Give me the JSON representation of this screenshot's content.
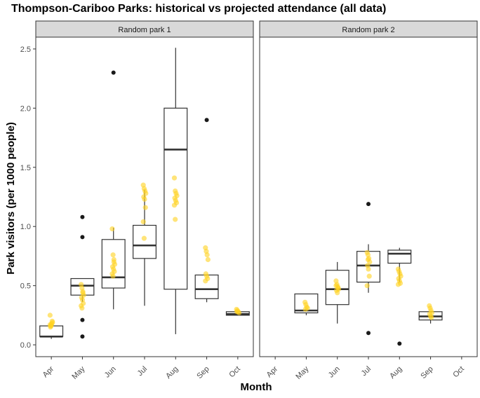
{
  "chart_data": {
    "type": "boxplot",
    "title": "Thompson-Cariboo Parks: historical vs projected attendance (all data)",
    "xlabel": "Month",
    "ylabel": "Park visitors (per 1000 people)",
    "categories": [
      "Apr",
      "May",
      "Jun",
      "Jul",
      "Aug",
      "Sep",
      "Oct"
    ],
    "yticks": [
      0.0,
      0.5,
      1.0,
      1.5,
      2.0,
      2.5
    ],
    "ylim": [
      -0.1,
      2.6
    ],
    "grid": false,
    "colors": {
      "projected_points": "#FFD21F",
      "box_line": "#333333",
      "outlier": "#1a1a1a",
      "strip_fill": "#D9D9D9"
    },
    "panels": [
      {
        "name": "Random park 1",
        "boxes": [
          {
            "category": "Apr",
            "lower": 0.05,
            "q1": 0.07,
            "median": 0.07,
            "q3": 0.16,
            "upper": 0.16,
            "outliers": []
          },
          {
            "category": "May",
            "lower": 0.36,
            "q1": 0.42,
            "median": 0.5,
            "q3": 0.56,
            "upper": 0.56,
            "outliers": [
              1.08,
              0.91,
              0.21,
              0.07
            ]
          },
          {
            "category": "Jun",
            "lower": 0.3,
            "q1": 0.48,
            "median": 0.57,
            "q3": 0.89,
            "upper": 0.99,
            "outliers": [
              2.3
            ]
          },
          {
            "category": "Jul",
            "lower": 0.33,
            "q1": 0.73,
            "median": 0.84,
            "q3": 1.01,
            "upper": 1.31,
            "outliers": []
          },
          {
            "category": "Aug",
            "lower": 0.09,
            "q1": 0.47,
            "median": 1.65,
            "q3": 2.0,
            "upper": 2.51,
            "outliers": []
          },
          {
            "category": "Sep",
            "lower": 0.36,
            "q1": 0.39,
            "median": 0.47,
            "q3": 0.59,
            "upper": 0.59,
            "outliers": [
              1.9
            ]
          },
          {
            "category": "Oct",
            "lower": 0.25,
            "q1": 0.25,
            "median": 0.26,
            "q3": 0.28,
            "upper": 0.28,
            "outliers": []
          }
        ],
        "projected_points": [
          {
            "category": "Apr",
            "values": [
              0.17,
              0.16,
              0.18,
              0.19,
              0.15,
              0.17,
              0.2,
              0.25,
              0.16
            ]
          },
          {
            "category": "May",
            "values": [
              0.51,
              0.48,
              0.45,
              0.42,
              0.4,
              0.38,
              0.35,
              0.33,
              0.31,
              0.44
            ]
          },
          {
            "category": "Jun",
            "values": [
              0.98,
              0.76,
              0.72,
              0.68,
              0.66,
              0.64,
              0.62,
              0.6,
              0.58,
              0.7
            ]
          },
          {
            "category": "Jul",
            "values": [
              1.35,
              1.32,
              1.3,
              1.28,
              1.25,
              1.23,
              1.16,
              1.04,
              0.9
            ]
          },
          {
            "category": "Aug",
            "values": [
              1.41,
              1.3,
              1.28,
              1.26,
              1.24,
              1.22,
              1.2,
              1.18,
              1.06
            ]
          },
          {
            "category": "Sep",
            "values": [
              0.82,
              0.79,
              0.76,
              0.72,
              0.6,
              0.58,
              0.56,
              0.54
            ]
          },
          {
            "category": "Oct",
            "values": [
              0.3,
              0.29,
              0.28,
              0.27,
              0.28
            ]
          }
        ]
      },
      {
        "name": "Random park 2",
        "boxes": [
          {
            "category": "May",
            "lower": 0.25,
            "q1": 0.27,
            "median": 0.29,
            "q3": 0.43,
            "upper": 0.43,
            "outliers": []
          },
          {
            "category": "Jun",
            "lower": 0.18,
            "q1": 0.34,
            "median": 0.47,
            "q3": 0.63,
            "upper": 0.7,
            "outliers": []
          },
          {
            "category": "Jul",
            "lower": 0.44,
            "q1": 0.53,
            "median": 0.67,
            "q3": 0.79,
            "upper": 0.85,
            "outliers": [
              1.19,
              0.1
            ]
          },
          {
            "category": "Aug",
            "lower": 0.53,
            "q1": 0.69,
            "median": 0.77,
            "q3": 0.8,
            "upper": 0.82,
            "outliers": [
              0.01
            ]
          },
          {
            "category": "Sep",
            "lower": 0.18,
            "q1": 0.21,
            "median": 0.24,
            "q3": 0.28,
            "upper": 0.28,
            "outliers": []
          }
        ],
        "projected_points": [
          {
            "category": "May",
            "values": [
              0.36,
              0.34,
              0.32,
              0.31,
              0.3
            ]
          },
          {
            "category": "Jun",
            "values": [
              0.54,
              0.51,
              0.49,
              0.47,
              0.46,
              0.44,
              0.48,
              0.5
            ]
          },
          {
            "category": "Jul",
            "values": [
              0.78,
              0.76,
              0.73,
              0.7,
              0.67,
              0.64,
              0.58,
              0.5,
              0.72
            ]
          },
          {
            "category": "Aug",
            "values": [
              0.64,
              0.62,
              0.6,
              0.58,
              0.56,
              0.54,
              0.52,
              0.51
            ]
          },
          {
            "category": "Sep",
            "values": [
              0.33,
              0.31,
              0.29,
              0.27,
              0.26,
              0.24,
              0.23
            ]
          }
        ]
      }
    ]
  }
}
